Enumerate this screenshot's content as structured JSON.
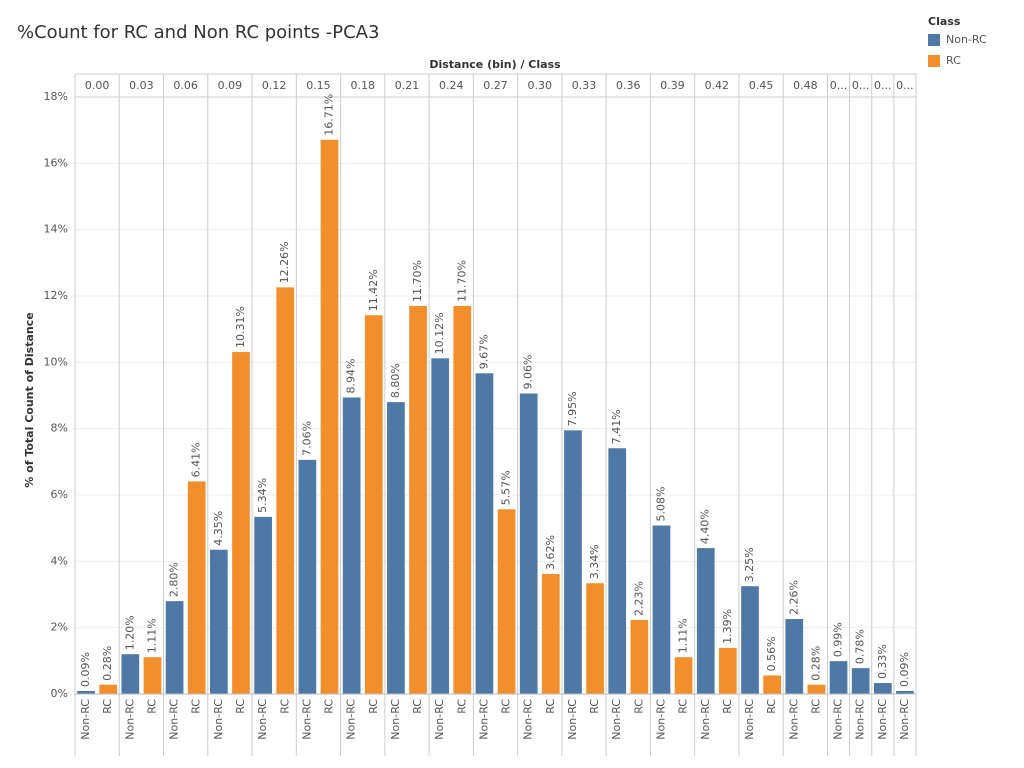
{
  "chart_data": {
    "type": "bar",
    "title": "%Count for RC and Non RC points -PCA3",
    "x_label": "Distance (bin)  /  Class",
    "y_label": "% of Total Count of Distance",
    "legend_title": "Class",
    "legend_position": "top-right",
    "grid": true,
    "bins": [
      "0.00",
      "0.03",
      "0.06",
      "0.09",
      "0.12",
      "0.15",
      "0.18",
      "0.21",
      "0.24",
      "0.27",
      "0.30",
      "0.33",
      "0.36",
      "0.39",
      "0.42",
      "0.45",
      "0.48",
      "0...",
      "0...",
      "0...",
      "0..."
    ],
    "series": [
      {
        "name": "Non-RC",
        "color": "#4e79a7",
        "values": [
          0.09,
          1.2,
          2.8,
          4.35,
          5.34,
          7.06,
          8.94,
          8.8,
          10.12,
          9.67,
          9.06,
          7.95,
          7.41,
          5.08,
          4.4,
          3.25,
          2.26,
          0.99,
          0.78,
          0.33,
          0.09
        ],
        "value_labels": [
          "0.09%",
          "1.20%",
          "2.80%",
          "4.35%",
          "5.34%",
          "7.06%",
          "8.94%",
          "8.80%",
          "10.12%",
          "9.67%",
          "9.06%",
          "7.95%",
          "7.41%",
          "5.08%",
          "4.40%",
          "3.25%",
          "2.26%",
          "0.99%",
          "0.78%",
          "0.33%",
          "0.09%"
        ]
      },
      {
        "name": "RC",
        "color": "#f28e2b",
        "values": [
          0.28,
          1.11,
          6.41,
          10.31,
          12.26,
          16.71,
          11.42,
          11.7,
          11.7,
          5.57,
          3.62,
          3.34,
          2.23,
          1.11,
          1.39,
          0.56,
          0.28,
          null,
          null,
          null,
          null
        ],
        "value_labels": [
          "0.28%",
          "1.11%",
          "6.41%",
          "10.31%",
          "12.26%",
          "16.71%",
          "11.42%",
          "11.70%",
          "11.70%",
          "5.57%",
          "3.62%",
          "3.34%",
          "2.23%",
          "1.11%",
          "1.39%",
          "0.56%",
          "0.28%",
          null,
          null,
          null,
          null
        ]
      }
    ],
    "ylim": [
      0,
      18
    ],
    "yticks": [
      {
        "value": 0,
        "label": "0%"
      },
      {
        "value": 2,
        "label": "2%"
      },
      {
        "value": 4,
        "label": "4%"
      },
      {
        "value": 6,
        "label": "6%"
      },
      {
        "value": 8,
        "label": "8%"
      },
      {
        "value": 10,
        "label": "10%"
      },
      {
        "value": 12,
        "label": "12%"
      },
      {
        "value": 14,
        "label": "14%"
      },
      {
        "value": 16,
        "label": "16%"
      },
      {
        "value": 18,
        "label": "18%"
      }
    ]
  }
}
